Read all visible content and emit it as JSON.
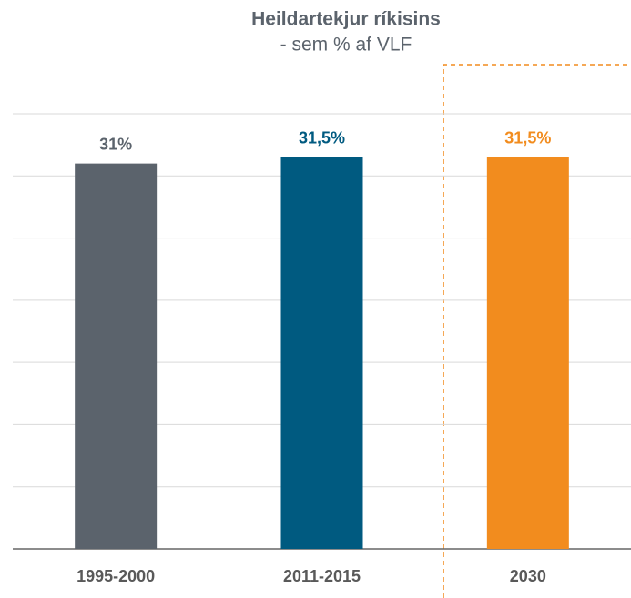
{
  "chart_data": {
    "type": "bar",
    "title": "Heildartekjur ríkisins",
    "subtitle": "- sem % af VLF",
    "categories": [
      "1995-2000",
      "2011-2015",
      "2030"
    ],
    "values": [
      31,
      31.5,
      31.5
    ],
    "value_labels": [
      "31%",
      "31,5%",
      "31,5%"
    ],
    "colors": [
      "#5b636c",
      "#005a80",
      "#f28c1e"
    ],
    "ylim": [
      0,
      35
    ],
    "yticks": [
      0,
      5,
      10,
      15,
      20,
      25,
      30,
      35
    ],
    "grid": true
  }
}
